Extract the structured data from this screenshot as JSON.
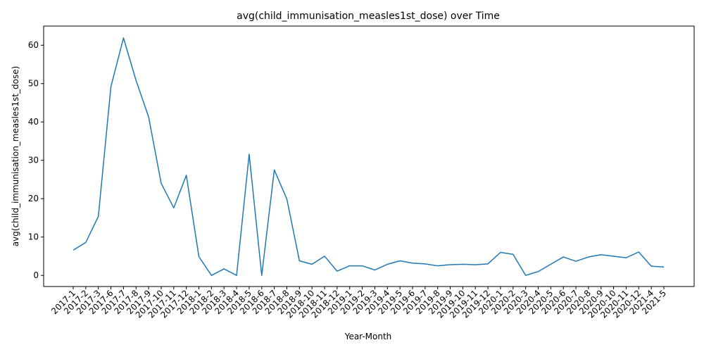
{
  "chart_data": {
    "type": "line",
    "title": "avg(child_immunisation_measles1st_dose) over Time",
    "xlabel": "Year-Month",
    "ylabel": "avg(child_immunisation_measles1st_dose)",
    "ylim": [
      -2.9,
      65
    ],
    "yticks": [
      0,
      10,
      20,
      30,
      40,
      50,
      60
    ],
    "grid": false,
    "line_color": "#1f77b4",
    "categories": [
      "2017-1",
      "2017-2",
      "2017-3",
      "2017-6",
      "2017-7",
      "2017-8",
      "2017-9",
      "2017-10",
      "2017-11",
      "2017-12",
      "2018-1",
      "2018-2",
      "2018-3",
      "2018-4",
      "2018-5",
      "2018-6",
      "2018-7",
      "2018-8",
      "2018-9",
      "2018-10",
      "2018-11",
      "2018-12",
      "2019-1",
      "2019-2",
      "2019-3",
      "2019-4",
      "2019-5",
      "2019-6",
      "2019-7",
      "2019-8",
      "2019-9",
      "2019-10",
      "2019-11",
      "2019-12",
      "2020-1",
      "2020-2",
      "2020-3",
      "2020-4",
      "2020-5",
      "2020-6",
      "2020-7",
      "2020-8",
      "2020-9",
      "2020-10",
      "2020-11",
      "2020-12",
      "2021-4",
      "2021-5"
    ],
    "values": [
      6.6,
      8.6,
      15.4,
      49.2,
      61.9,
      50.8,
      41.3,
      24.0,
      17.6,
      26.1,
      4.9,
      0.0,
      1.7,
      0.0,
      31.6,
      0.0,
      27.5,
      19.9,
      3.8,
      2.9,
      5.0,
      1.1,
      2.5,
      2.5,
      1.4,
      2.9,
      3.8,
      3.2,
      3.0,
      2.5,
      2.8,
      2.9,
      2.8,
      3.0,
      6.0,
      5.5,
      0.0,
      1.0,
      2.9,
      4.8,
      3.7,
      4.8,
      5.4,
      5.0,
      4.6,
      6.1,
      2.4,
      2.2
    ]
  }
}
